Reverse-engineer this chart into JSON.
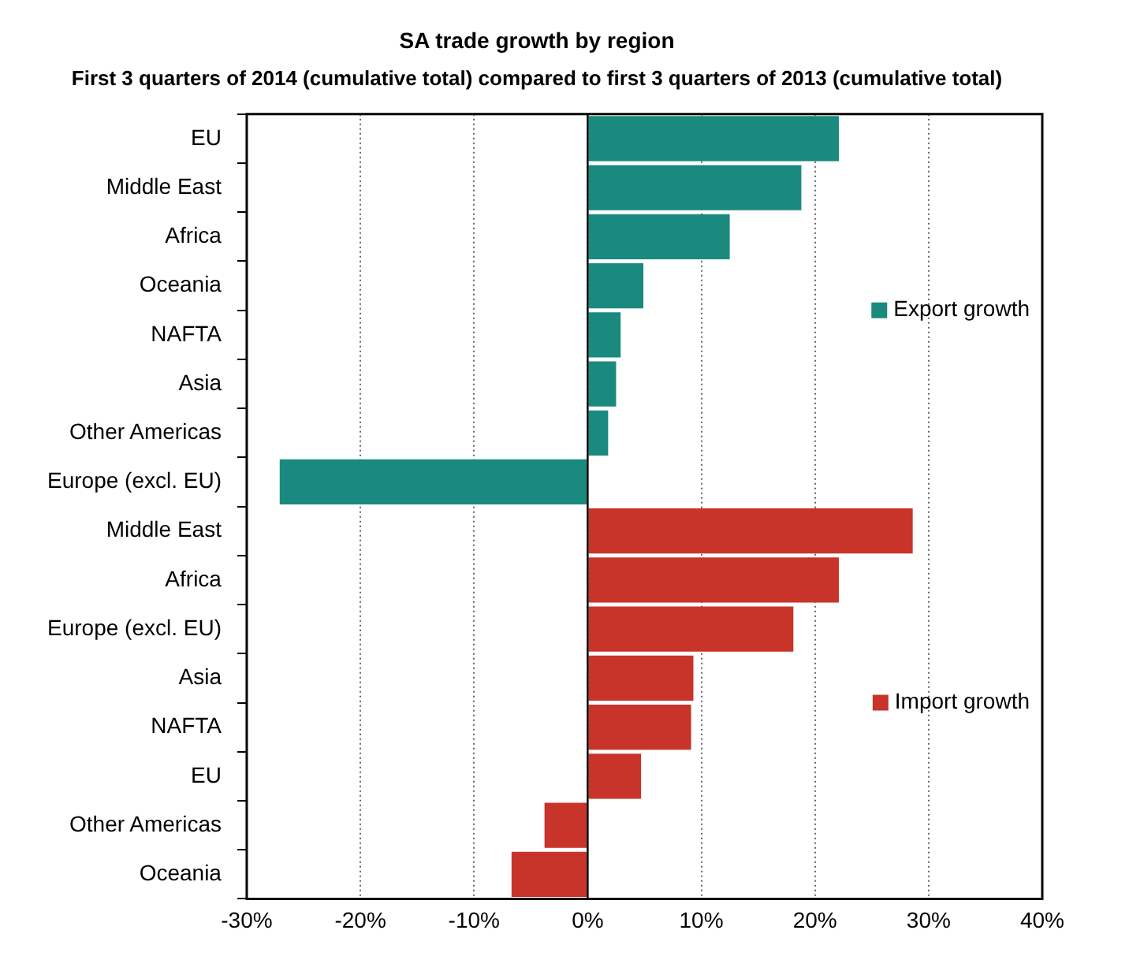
{
  "chart_data": {
    "type": "bar",
    "orientation": "horizontal",
    "title": "SA trade growth by region",
    "subtitle": "First 3 quarters of 2014 (cumulative total) compared to first 3 quarters of 2013 (cumulative total)",
    "categories": [
      "EU",
      "Middle East",
      "Africa",
      "Oceania",
      "NAFTA",
      "Asia",
      "Other Americas",
      "Europe (excl. EU)",
      "Middle East",
      "Africa",
      "Europe (excl. EU)",
      "Asia",
      "NAFTA",
      "EU",
      "Other Americas",
      "Oceania"
    ],
    "series": [
      {
        "name": "Export growth",
        "color": "#1a8a7e",
        "values": [
          22.1,
          18.8,
          12.5,
          4.9,
          2.9,
          2.5,
          1.8,
          -27.1,
          null,
          null,
          null,
          null,
          null,
          null,
          null,
          null
        ]
      },
      {
        "name": "Import growth",
        "color": "#c8342a",
        "values": [
          null,
          null,
          null,
          null,
          null,
          null,
          null,
          null,
          28.6,
          22.1,
          18.1,
          9.3,
          9.1,
          4.7,
          -3.8,
          -6.7
        ]
      }
    ],
    "xlim": [
      -30,
      40
    ],
    "xticks": [
      {
        "value": -30,
        "label": "-30%"
      },
      {
        "value": -20,
        "label": "-20%"
      },
      {
        "value": -10,
        "label": "-10%"
      },
      {
        "value": 0,
        "label": "0%"
      },
      {
        "value": 10,
        "label": "10%"
      },
      {
        "value": 20,
        "label": "20%"
      },
      {
        "value": 30,
        "label": "30%"
      },
      {
        "value": 40,
        "label": "40%"
      }
    ],
    "grid": "x",
    "legend": "right"
  }
}
